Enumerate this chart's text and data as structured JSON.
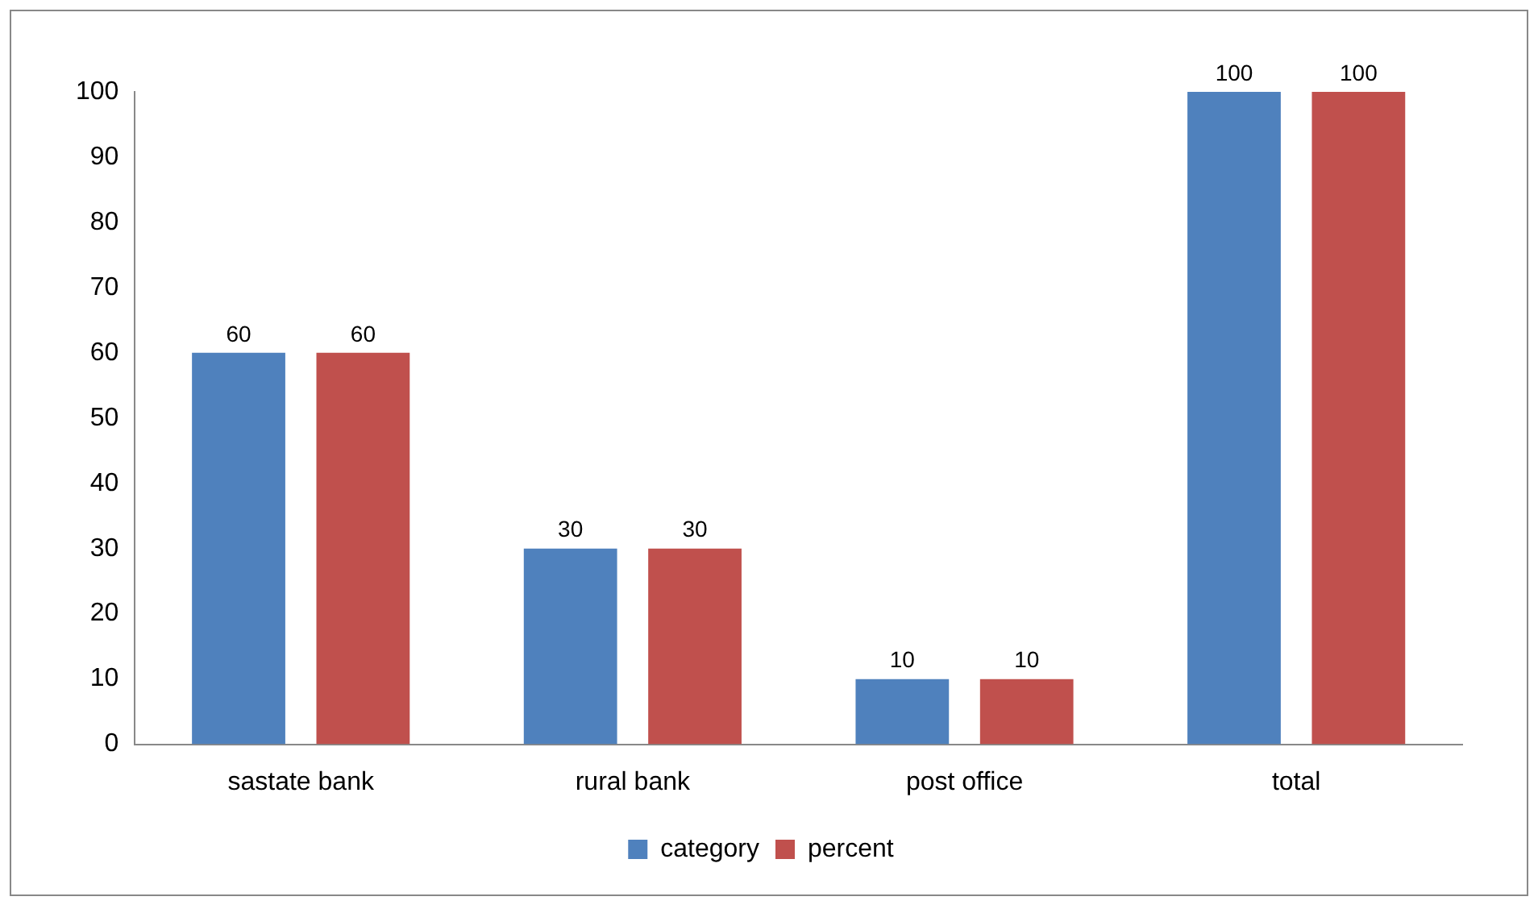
{
  "chart_data": {
    "type": "bar",
    "categories": [
      "sastate bank",
      "rural bank",
      "post office",
      "total"
    ],
    "series": [
      {
        "name": "category",
        "color": "#4f81bd",
        "values": [
          60,
          30,
          10,
          100
        ]
      },
      {
        "name": "percent",
        "color": "#c0504d",
        "values": [
          60,
          30,
          10,
          100
        ]
      }
    ],
    "ylim": [
      0,
      100
    ],
    "yticks": [
      0,
      10,
      20,
      30,
      40,
      50,
      60,
      70,
      80,
      90,
      100
    ],
    "grid": false,
    "legend": "bottom",
    "data_labels": true
  }
}
